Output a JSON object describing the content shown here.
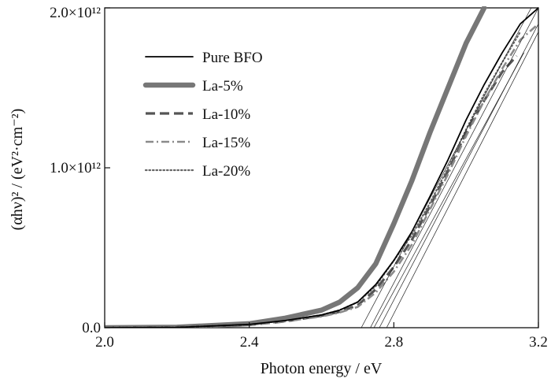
{
  "chart_data": {
    "type": "line",
    "xlabel": "Photon energy / eV",
    "ylabel": "(αhν)² / (eV²·cm⁻²)",
    "xlim": [
      2.0,
      3.2
    ],
    "ylim": [
      0,
      2000000000000.0
    ],
    "x_ticks": [
      2.0,
      2.4,
      2.8,
      3.2
    ],
    "x_tick_labels": [
      "2.0",
      "2.4",
      "2.8",
      "3.2"
    ],
    "y_ticks": [
      0,
      1000000000000.0,
      2000000000000.0
    ],
    "y_tick_labels": [
      "0.0",
      "1.0×10¹²",
      "2.0×10¹²"
    ],
    "grid": false,
    "legend_position": "top-left",
    "series": [
      {
        "name": "Pure BFO",
        "style": "solid-thin",
        "color": "#000000",
        "x": [
          2.0,
          2.2,
          2.4,
          2.5,
          2.6,
          2.65,
          2.7,
          2.75,
          2.8,
          2.85,
          2.9,
          2.95,
          3.0,
          3.05,
          3.1,
          3.15,
          3.2
        ],
        "y": [
          0,
          2000000000.0,
          20000000000.0,
          45000000000.0,
          80000000000.0,
          110000000000.0,
          160000000000.0,
          270000000000.0,
          420000000000.0,
          600000000000.0,
          820000000000.0,
          1050000000000.0,
          1300000000000.0,
          1520000000000.0,
          1720000000000.0,
          1900000000000.0,
          2000000000000.0
        ]
      },
      {
        "name": "La-5%",
        "style": "solid-thick",
        "color": "#777777",
        "x": [
          2.0,
          2.2,
          2.4,
          2.5,
          2.6,
          2.65,
          2.7,
          2.75,
          2.8,
          2.85,
          2.9,
          2.95,
          3.0,
          3.05
        ],
        "y": [
          0,
          3000000000.0,
          25000000000.0,
          60000000000.0,
          110000000000.0,
          160000000000.0,
          250000000000.0,
          400000000000.0,
          650000000000.0,
          920000000000.0,
          1220000000000.0,
          1500000000000.0,
          1780000000000.0,
          2000000000000.0
        ]
      },
      {
        "name": "La-10%",
        "style": "dash",
        "color": "#555555",
        "x": [
          2.0,
          2.2,
          2.4,
          2.5,
          2.6,
          2.65,
          2.7,
          2.75,
          2.8,
          2.85,
          2.9,
          2.95,
          3.0,
          3.05,
          3.1,
          3.14
        ],
        "y": [
          0,
          2000000000.0,
          18000000000.0,
          40000000000.0,
          75000000000.0,
          100000000000.0,
          140000000000.0,
          240000000000.0,
          380000000000.0,
          550000000000.0,
          760000000000.0,
          980000000000.0,
          1220000000000.0,
          1420000000000.0,
          1600000000000.0,
          1700000000000.0
        ]
      },
      {
        "name": "La-15%",
        "style": "dash-dot",
        "color": "#8a8a8a",
        "x": [
          2.0,
          2.2,
          2.4,
          2.5,
          2.6,
          2.65,
          2.7,
          2.75,
          2.8,
          2.85,
          2.9,
          2.95,
          3.0,
          3.05,
          3.1,
          3.15,
          3.2
        ],
        "y": [
          0,
          2000000000.0,
          18000000000.0,
          40000000000.0,
          70000000000.0,
          95000000000.0,
          130000000000.0,
          220000000000.0,
          350000000000.0,
          520000000000.0,
          740000000000.0,
          960000000000.0,
          1200000000000.0,
          1420000000000.0,
          1620000000000.0,
          1800000000000.0,
          1900000000000.0
        ]
      },
      {
        "name": "La-20%",
        "style": "dotted",
        "color": "#666666",
        "x": [
          2.0,
          2.2,
          2.4,
          2.5,
          2.6,
          2.65,
          2.7,
          2.75,
          2.8,
          2.85,
          2.9,
          2.95,
          3.0,
          3.05,
          3.1,
          3.15
        ],
        "y": [
          0,
          2000000000.0,
          20000000000.0,
          45000000000.0,
          80000000000.0,
          110000000000.0,
          160000000000.0,
          260000000000.0,
          420000000000.0,
          580000000000.0,
          780000000000.0,
          1000000000000.0,
          1240000000000.0,
          1460000000000.0,
          1660000000000.0,
          1850000000000.0
        ]
      }
    ],
    "tangent_lines": [
      {
        "x": [
          2.71,
          3.18
        ],
        "y": [
          0,
          2000000000000.0
        ]
      },
      {
        "x": [
          2.735,
          3.2
        ],
        "y": [
          0,
          2000000000000.0
        ]
      },
      {
        "x": [
          2.745,
          3.16
        ],
        "y": [
          0,
          1720000000000.0
        ]
      },
      {
        "x": [
          2.76,
          3.2
        ],
        "y": [
          0,
          1900000000000.0
        ]
      },
      {
        "x": [
          2.78,
          3.2
        ],
        "y": [
          0,
          1850000000000.0
        ]
      }
    ]
  }
}
